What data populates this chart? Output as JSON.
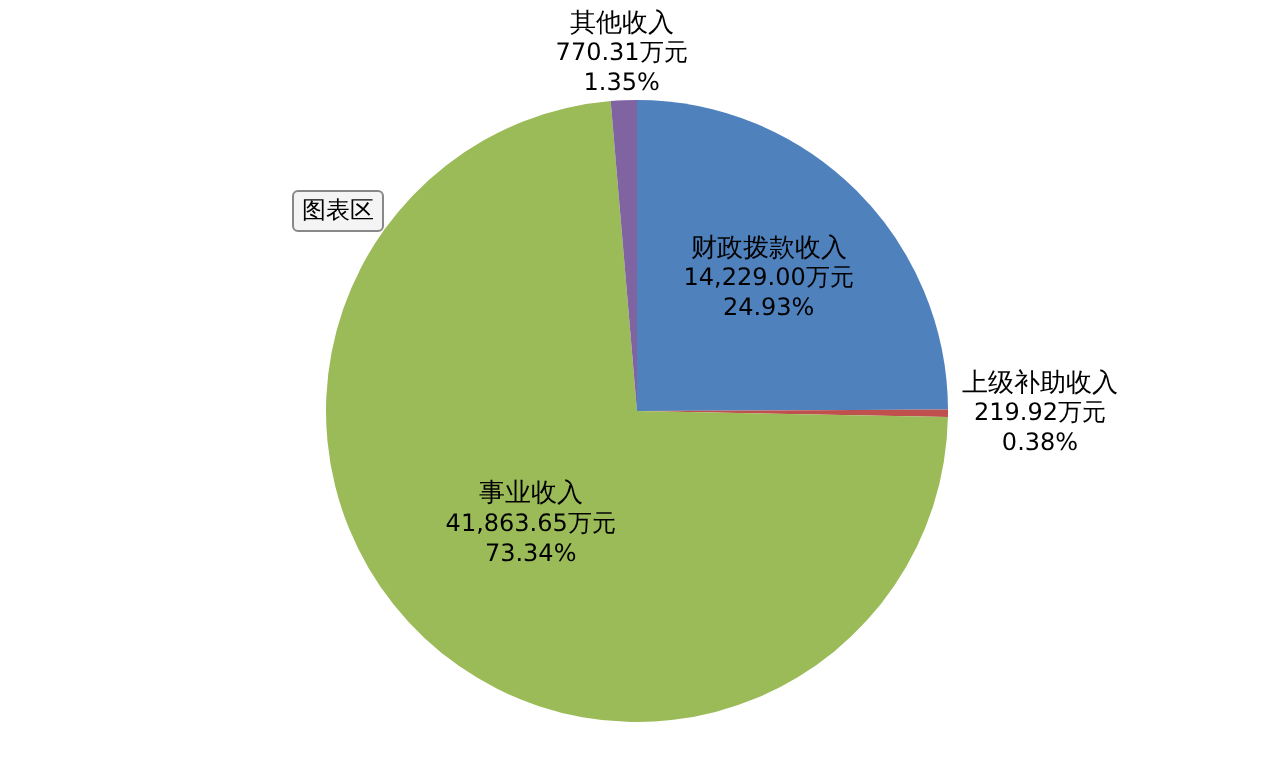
{
  "chart_data": {
    "type": "pie",
    "categories": [
      "财政拨款收入",
      "上级补助收入",
      "事业收入",
      "其他收入"
    ],
    "values": [
      14229.0,
      219.92,
      41863.65,
      770.31
    ],
    "colors": [
      "#4f81bd",
      "#c0504d",
      "#9bbb59",
      "#8064a2"
    ],
    "value_labels": [
      "14,229.00万元\n24.93%",
      "219.92万元\n0.38%",
      "41,863.65万元\n73.34%",
      "770.31万元\n1.35%"
    ],
    "annotations": [
      "图表区"
    ],
    "legend": false
  }
}
